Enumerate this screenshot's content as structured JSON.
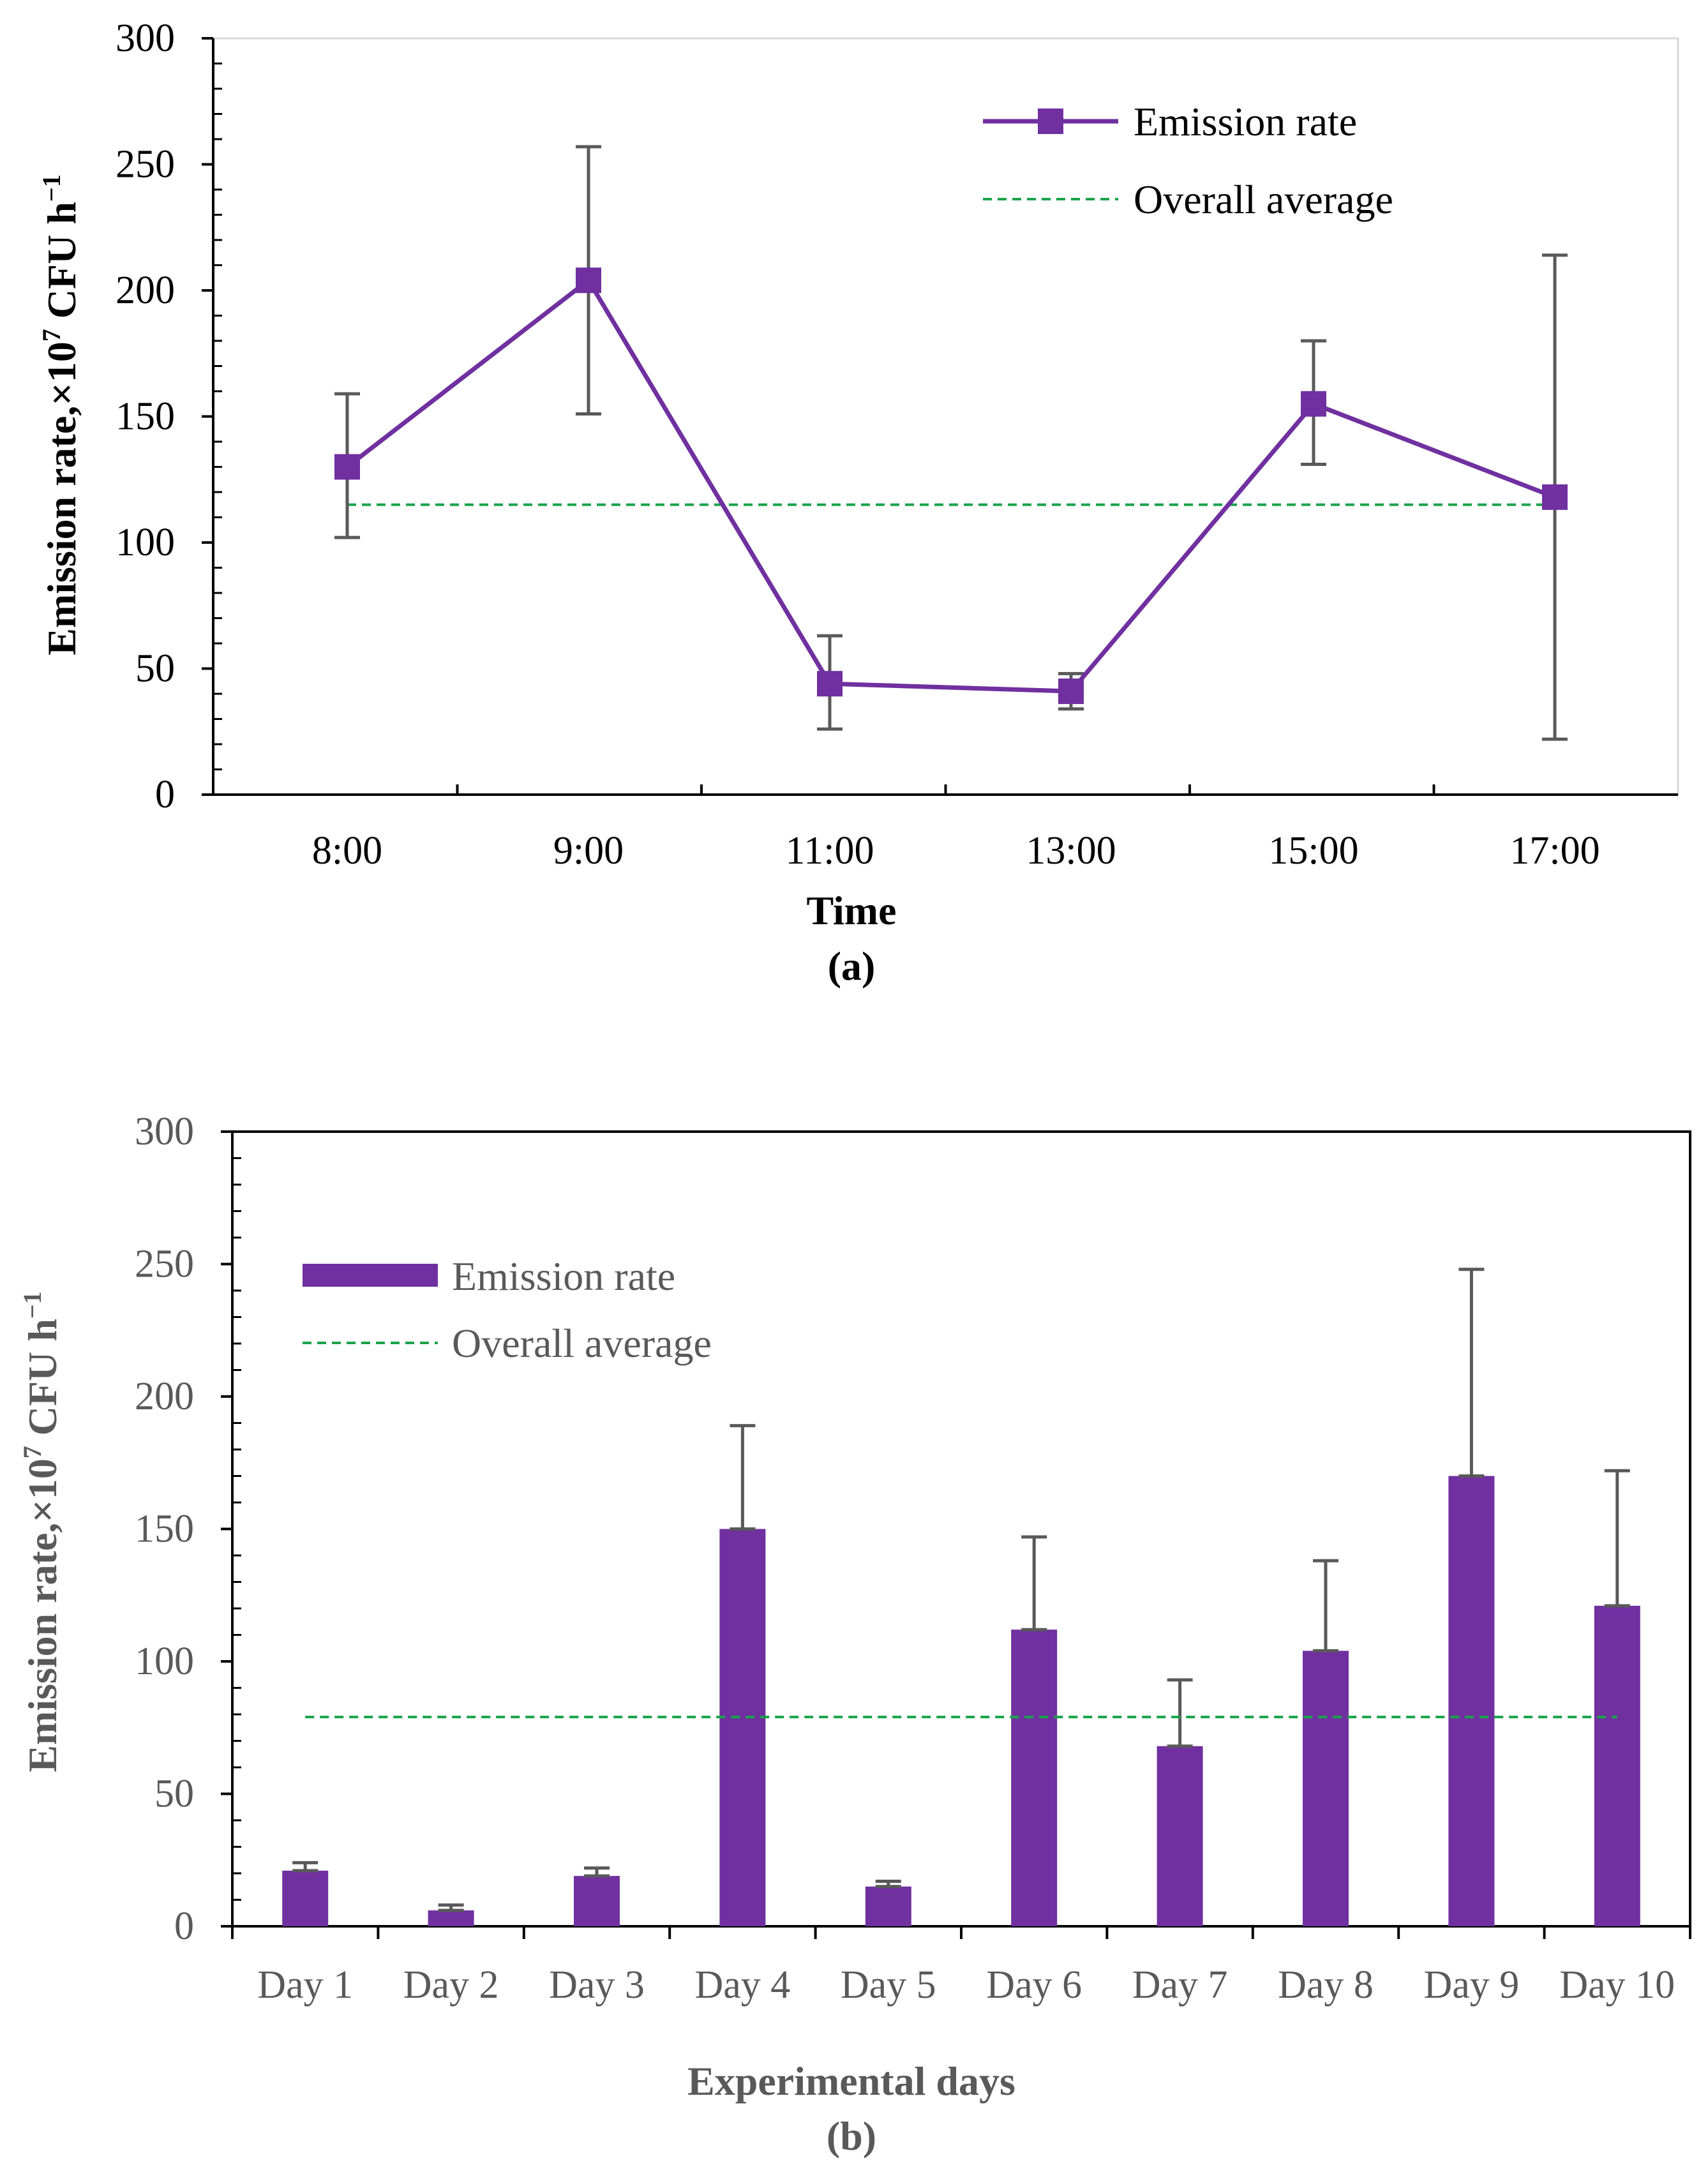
{
  "chart_data": [
    {
      "type": "line",
      "panel_label": "(a)",
      "xlabel": "Time",
      "ylabel": {
        "prefix": "Emission rate,×10",
        "exp": "7",
        "mid": " CFU h",
        "unit_exp": "−1"
      },
      "ylim": [
        0,
        300
      ],
      "yticks": [
        "0",
        "50",
        "100",
        "150",
        "200",
        "250",
        "300"
      ],
      "categories": [
        "8:00",
        "9:00",
        "11:00",
        "13:00",
        "15:00",
        "17:00"
      ],
      "series": [
        {
          "name": "Emission rate",
          "values": [
            130,
            204,
            44,
            41,
            155,
            118
          ],
          "err_low": [
            102,
            151,
            26,
            34,
            131,
            22
          ],
          "err_high": [
            159,
            257,
            63,
            48,
            180,
            214
          ],
          "color": "#7030a0"
        }
      ],
      "average": {
        "name": "Overall average",
        "value": 115,
        "color": "#1aa34a"
      },
      "legend_position": "top-right"
    },
    {
      "type": "bar",
      "panel_label": "(b)",
      "xlabel": "Experimental days",
      "ylabel": {
        "prefix": "Emission rate,×10",
        "exp": "7",
        "mid": "  CFU h",
        "unit_exp": "−1"
      },
      "ylim": [
        0,
        300
      ],
      "yticks": [
        "0",
        "50",
        "100",
        "150",
        "200",
        "250",
        "300"
      ],
      "categories": [
        "Day 1",
        "Day 2",
        "Day 3",
        "Day 4",
        "Day 5",
        "Day 6",
        "Day 7",
        "Day 8",
        "Day 9",
        "Day 10"
      ],
      "series": [
        {
          "name": "Emission rate",
          "values": [
            21,
            6,
            19,
            150,
            15,
            112,
            68,
            104,
            170,
            121
          ],
          "err_high": [
            24,
            8,
            22,
            189,
            17,
            147,
            93,
            138,
            248,
            172
          ],
          "color": "#7030a0"
        }
      ],
      "average": {
        "name": "Overall average",
        "value": 79,
        "color": "#1aa34a"
      },
      "legend_position": "top-left"
    }
  ]
}
